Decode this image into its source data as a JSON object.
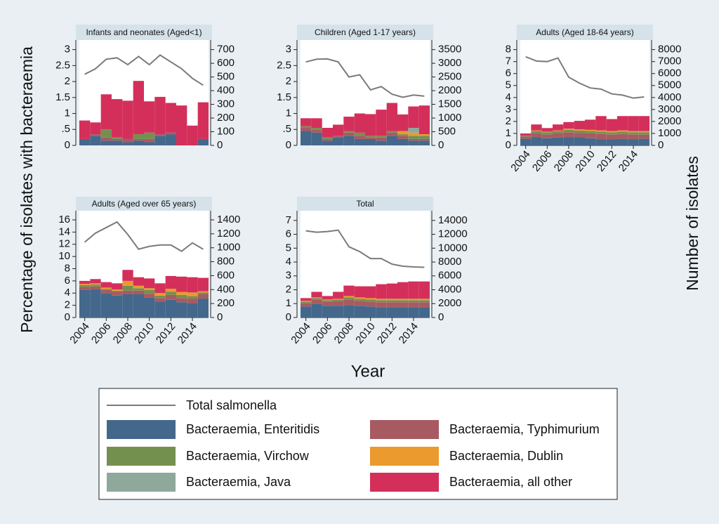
{
  "ylabel": "Percentage of isolates with bacteraemia",
  "y2label": "Number of isolates",
  "xlabel": "Year",
  "chart_data": [
    {
      "type": "bar",
      "stacked": true,
      "title": "Infants and neonates (Aged<1)",
      "x": [
        2004,
        2005,
        2006,
        2007,
        2008,
        2009,
        2010,
        2011,
        2012,
        2013,
        2014,
        2015
      ],
      "xlim": [
        2003.5,
        2015.5
      ],
      "ylim": [
        0,
        3.3
      ],
      "yticks": [
        0,
        {
          "value": 0.5,
          "label": ".5"
        },
        1,
        1.5,
        2,
        2.5,
        3
      ],
      "y2lim": [
        0,
        770
      ],
      "y2ticks": [
        0,
        100,
        200,
        300,
        400,
        500,
        600,
        700
      ],
      "series": [
        {
          "name": "Bacteraemia, Enteritidis",
          "color": "#43688c",
          "values": [
            0.2,
            0.3,
            0.15,
            0.15,
            0.1,
            0.15,
            0.1,
            0.3,
            0.35,
            0,
            0,
            0.2
          ]
        },
        {
          "name": "Bacteraemia, Typhimurium",
          "color": "#a85a62",
          "values": [
            0,
            0.05,
            0.1,
            0.05,
            0.1,
            0.05,
            0.1,
            0.05,
            0.05,
            0,
            0,
            0
          ]
        },
        {
          "name": "Bacteraemia, Virchow",
          "color": "#74904f",
          "values": [
            0,
            0,
            0.25,
            0.05,
            0,
            0.15,
            0.2,
            0,
            0,
            0,
            0,
            0
          ]
        },
        {
          "name": "Bacteraemia, Dublin",
          "color": "#eb9a2e",
          "values": [
            0,
            0,
            0,
            0,
            0,
            0,
            0,
            0,
            0,
            0,
            0,
            0
          ]
        },
        {
          "name": "Bacteraemia, Java",
          "color": "#8fa89c",
          "values": [
            0,
            0,
            0,
            0,
            0,
            0,
            0,
            0,
            0,
            0,
            0,
            0
          ]
        },
        {
          "name": "Bacteraemia, all other",
          "color": "#d42f5a",
          "values": [
            0.58,
            0.37,
            1.1,
            1.2,
            1.2,
            1.67,
            0.98,
            1.17,
            0.93,
            1.25,
            0.62,
            1.15
          ]
        },
        {
          "name": "Total salmonella",
          "color": "#7a7a7a",
          "type": "line",
          "axis": "y2",
          "values": [
            520,
            560,
            630,
            640,
            590,
            650,
            590,
            660,
            610,
            560,
            490,
            440
          ]
        }
      ]
    },
    {
      "type": "bar",
      "stacked": true,
      "title": "Children (Aged 1-17 years)",
      "x": [
        2004,
        2005,
        2006,
        2007,
        2008,
        2009,
        2010,
        2011,
        2012,
        2013,
        2014,
        2015
      ],
      "xlim": [
        2003.5,
        2015.5
      ],
      "ylim": [
        0,
        3.3
      ],
      "yticks": [
        0,
        {
          "value": 0.5,
          "label": ".5"
        },
        1,
        1.5,
        2,
        2.5,
        3
      ],
      "y2lim": [
        0,
        3850
      ],
      "y2ticks": [
        0,
        500,
        1000,
        1500,
        2000,
        2500,
        3000,
        3500
      ],
      "series": [
        {
          "name": "Bacteraemia, Enteritidis",
          "color": "#43688c",
          "values": [
            0.45,
            0.4,
            0.15,
            0.25,
            0.3,
            0.2,
            0.2,
            0.15,
            0.3,
            0.2,
            0.15,
            0.15
          ]
        },
        {
          "name": "Bacteraemia, Typhimurium",
          "color": "#a85a62",
          "values": [
            0.1,
            0.1,
            0.05,
            0.05,
            0.1,
            0.1,
            0.05,
            0.1,
            0.1,
            0.1,
            0.05,
            0.05
          ]
        },
        {
          "name": "Bacteraemia, Virchow",
          "color": "#74904f",
          "values": [
            0.05,
            0.05,
            0.05,
            0,
            0.05,
            0.1,
            0.05,
            0.05,
            0.05,
            0.05,
            0.1,
            0.1
          ]
        },
        {
          "name": "Bacteraemia, Dublin",
          "color": "#eb9a2e",
          "values": [
            0,
            0,
            0,
            0,
            0,
            0,
            0,
            0,
            0,
            0.1,
            0.1,
            0.05
          ]
        },
        {
          "name": "Bacteraemia, Java",
          "color": "#8fa89c",
          "values": [
            0,
            0,
            0,
            0,
            0,
            0,
            0,
            0,
            0,
            0,
            0.15,
            0
          ]
        },
        {
          "name": "Bacteraemia, all other",
          "color": "#d42f5a",
          "values": [
            0.25,
            0.3,
            0.3,
            0.35,
            0.45,
            0.6,
            0.68,
            0.82,
            0.88,
            0.52,
            0.67,
            0.9
          ]
        },
        {
          "name": "Total salmonella",
          "color": "#7a7a7a",
          "type": "line",
          "axis": "y2",
          "values": [
            3050,
            3150,
            3160,
            3050,
            2500,
            2580,
            2030,
            2150,
            1870,
            1760,
            1840,
            1800
          ]
        }
      ]
    },
    {
      "type": "bar",
      "stacked": true,
      "title": "Adults (Aged 18-64 years)",
      "x": [
        2004,
        2005,
        2006,
        2007,
        2008,
        2009,
        2010,
        2011,
        2012,
        2013,
        2014,
        2015
      ],
      "xlim": [
        2003.5,
        2015.5
      ],
      "xticks": [
        2004,
        2006,
        2008,
        2010,
        2012,
        2014
      ],
      "ylim": [
        0,
        8.8
      ],
      "yticks": [
        0,
        1,
        2,
        3,
        4,
        5,
        6,
        7,
        8
      ],
      "y2lim": [
        0,
        8800
      ],
      "y2ticks": [
        0,
        1000,
        2000,
        3000,
        4000,
        5000,
        6000,
        7000,
        8000
      ],
      "series": [
        {
          "name": "Bacteraemia, Enteritidis",
          "color": "#43688c",
          "values": [
            0.55,
            0.7,
            0.6,
            0.65,
            0.7,
            0.7,
            0.6,
            0.5,
            0.5,
            0.55,
            0.5,
            0.55
          ]
        },
        {
          "name": "Bacteraemia, Typhimurium",
          "color": "#a85a62",
          "values": [
            0.2,
            0.3,
            0.3,
            0.35,
            0.4,
            0.35,
            0.4,
            0.45,
            0.4,
            0.4,
            0.4,
            0.35
          ]
        },
        {
          "name": "Bacteraemia, Virchow",
          "color": "#74904f",
          "values": [
            0.1,
            0.2,
            0.2,
            0.2,
            0.2,
            0.2,
            0.2,
            0.2,
            0.2,
            0.2,
            0.2,
            0.2
          ]
        },
        {
          "name": "Bacteraemia, Dublin",
          "color": "#eb9a2e",
          "values": [
            0,
            0.05,
            0.05,
            0.05,
            0.1,
            0.1,
            0.1,
            0.1,
            0.1,
            0.1,
            0.1,
            0.1
          ]
        },
        {
          "name": "Bacteraemia, Java",
          "color": "#8fa89c",
          "values": [
            0,
            0,
            0,
            0,
            0,
            0,
            0,
            0,
            0,
            0,
            0,
            0
          ]
        },
        {
          "name": "Bacteraemia, all other",
          "color": "#d42f5a",
          "values": [
            0.15,
            0.5,
            0.3,
            0.5,
            0.55,
            0.7,
            0.85,
            1.2,
            1.0,
            1.2,
            1.25,
            1.25
          ]
        },
        {
          "name": "Total salmonella",
          "color": "#7a7a7a",
          "type": "line",
          "axis": "y2",
          "values": [
            7400,
            7050,
            7000,
            7300,
            5700,
            5200,
            4800,
            4700,
            4300,
            4200,
            3950,
            4050
          ]
        }
      ]
    },
    {
      "type": "bar",
      "stacked": true,
      "title": "Adults (Aged over 65 years)",
      "x": [
        2004,
        2005,
        2006,
        2007,
        2008,
        2009,
        2010,
        2011,
        2012,
        2013,
        2014,
        2015
      ],
      "xlim": [
        2003.5,
        2015.5
      ],
      "xticks": [
        2004,
        2006,
        2008,
        2010,
        2012,
        2014
      ],
      "ylim": [
        0,
        17.5
      ],
      "yticks": [
        0,
        2,
        4,
        6,
        8,
        10,
        12,
        14,
        16
      ],
      "y2lim": [
        0,
        1531
      ],
      "y2ticks": [
        0,
        200,
        400,
        600,
        800,
        1000,
        1200,
        1400
      ],
      "series": [
        {
          "name": "Bacteraemia, Enteritidis",
          "color": "#43688c",
          "values": [
            4.5,
            4.6,
            4.0,
            3.6,
            3.8,
            3.8,
            3.3,
            2.6,
            2.9,
            2.5,
            2.3,
            3.1
          ]
        },
        {
          "name": "Bacteraemia, Typhimurium",
          "color": "#a85a62",
          "values": [
            0.5,
            0.5,
            0.5,
            0.6,
            0.6,
            0.6,
            0.6,
            0.6,
            0.8,
            0.7,
            0.8,
            0.7
          ]
        },
        {
          "name": "Bacteraemia, Virchow",
          "color": "#74904f",
          "values": [
            0.3,
            0.3,
            0.2,
            0.2,
            0.8,
            0.4,
            0.6,
            0.4,
            0.5,
            0.5,
            0.4,
            0.3
          ]
        },
        {
          "name": "Bacteraemia, Dublin",
          "color": "#eb9a2e",
          "values": [
            0.2,
            0.2,
            0.2,
            0.2,
            0.8,
            0.4,
            0.3,
            0.4,
            0.5,
            0.5,
            0.6,
            0.2
          ]
        },
        {
          "name": "Bacteraemia, Java",
          "color": "#8fa89c",
          "values": [
            0,
            0,
            0,
            0,
            0,
            0,
            0,
            0,
            0,
            0,
            0,
            0
          ]
        },
        {
          "name": "Bacteraemia, all other",
          "color": "#d42f5a",
          "values": [
            0.5,
            0.7,
            0.9,
            1.0,
            1.8,
            1.4,
            1.6,
            1.6,
            2.1,
            2.5,
            2.5,
            2.2
          ]
        },
        {
          "name": "Total salmonella",
          "color": "#7a7a7a",
          "type": "line",
          "axis": "y2",
          "values": [
            1080,
            1210,
            1290,
            1370,
            1190,
            980,
            1020,
            1040,
            1040,
            950,
            1070,
            980
          ]
        }
      ]
    },
    {
      "type": "bar",
      "stacked": true,
      "title": "Total",
      "x": [
        2004,
        2005,
        2006,
        2007,
        2008,
        2009,
        2010,
        2011,
        2012,
        2013,
        2014,
        2015
      ],
      "xlim": [
        2003.5,
        2015.5
      ],
      "xticks": [
        2004,
        2006,
        2008,
        2010,
        2012,
        2014
      ],
      "ylim": [
        0,
        7.7
      ],
      "yticks": [
        0,
        1,
        2,
        3,
        4,
        5,
        6,
        7
      ],
      "y2lim": [
        0,
        15400
      ],
      "y2ticks": [
        0,
        2000,
        4000,
        6000,
        8000,
        10000,
        12000,
        14000
      ],
      "series": [
        {
          "name": "Bacteraemia, Enteritidis",
          "color": "#43688c",
          "values": [
            0.8,
            1.0,
            0.85,
            0.85,
            0.9,
            0.85,
            0.8,
            0.75,
            0.75,
            0.75,
            0.75,
            0.75
          ]
        },
        {
          "name": "Bacteraemia, Typhimurium",
          "color": "#a85a62",
          "values": [
            0.25,
            0.3,
            0.3,
            0.35,
            0.4,
            0.35,
            0.35,
            0.35,
            0.35,
            0.35,
            0.35,
            0.35
          ]
        },
        {
          "name": "Bacteraemia, Virchow",
          "color": "#74904f",
          "values": [
            0.1,
            0.1,
            0.1,
            0.1,
            0.15,
            0.15,
            0.15,
            0.15,
            0.15,
            0.15,
            0.15,
            0.15
          ]
        },
        {
          "name": "Bacteraemia, Dublin",
          "color": "#eb9a2e",
          "values": [
            0.05,
            0.05,
            0.05,
            0.05,
            0.1,
            0.1,
            0.1,
            0.1,
            0.1,
            0.1,
            0.1,
            0.1
          ]
        },
        {
          "name": "Bacteraemia, Java",
          "color": "#8fa89c",
          "values": [
            0,
            0,
            0,
            0,
            0,
            0,
            0,
            0,
            0,
            0,
            0,
            0
          ]
        },
        {
          "name": "Bacteraemia, all other",
          "color": "#d42f5a",
          "values": [
            0.2,
            0.4,
            0.25,
            0.5,
            0.75,
            0.8,
            0.85,
            1.05,
            1.1,
            1.2,
            1.25,
            1.25
          ]
        },
        {
          "name": "Total salmonella",
          "color": "#7a7a7a",
          "type": "line",
          "axis": "y2",
          "values": [
            12500,
            12300,
            12400,
            12600,
            10200,
            9500,
            8500,
            8500,
            7700,
            7400,
            7300,
            7250
          ]
        }
      ]
    }
  ]
}
